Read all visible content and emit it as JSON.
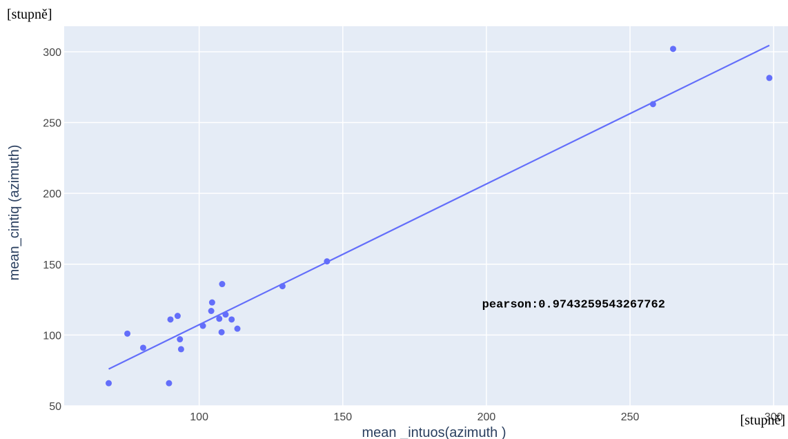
{
  "chart_data": {
    "type": "scatter",
    "xlabel": "mean _intuos(azimuth )",
    "ylabel": "mean_cintiq (azimuth)",
    "xlim": [
      53,
      305
    ],
    "ylim": [
      50,
      318
    ],
    "x_ticks": [
      100,
      150,
      200,
      250,
      300
    ],
    "y_ticks": [
      50,
      100,
      150,
      200,
      250,
      300
    ],
    "grid": true,
    "unit_label_y": "[stupně]",
    "unit_label_x": "[stupně]",
    "annotation": "pearson:0.9743259543267762",
    "points": [
      {
        "x": 68.5,
        "y": 66
      },
      {
        "x": 75,
        "y": 101
      },
      {
        "x": 80.5,
        "y": 91
      },
      {
        "x": 89.5,
        "y": 66
      },
      {
        "x": 90,
        "y": 111
      },
      {
        "x": 92.5,
        "y": 113.5
      },
      {
        "x": 93.3,
        "y": 97
      },
      {
        "x": 93.7,
        "y": 90
      },
      {
        "x": 101.3,
        "y": 106.5
      },
      {
        "x": 104.2,
        "y": 117
      },
      {
        "x": 104.5,
        "y": 123
      },
      {
        "x": 107,
        "y": 111.5
      },
      {
        "x": 107.8,
        "y": 102
      },
      {
        "x": 108,
        "y": 136
      },
      {
        "x": 109.2,
        "y": 114.5
      },
      {
        "x": 111.3,
        "y": 111
      },
      {
        "x": 113.3,
        "y": 104.5
      },
      {
        "x": 129,
        "y": 134.5
      },
      {
        "x": 144.5,
        "y": 152
      },
      {
        "x": 258,
        "y": 263
      },
      {
        "x": 265,
        "y": 302
      },
      {
        "x": 298.5,
        "y": 281.5
      }
    ],
    "trendline": {
      "x": [
        68.5,
        298.5
      ],
      "y": [
        76,
        304.5
      ]
    },
    "colors": {
      "plot_bg": "#e5ecf6",
      "grid": "#ffffff",
      "marker": "#636efa",
      "axis_text": "#2a3f5f",
      "tick_text": "#444444"
    }
  }
}
